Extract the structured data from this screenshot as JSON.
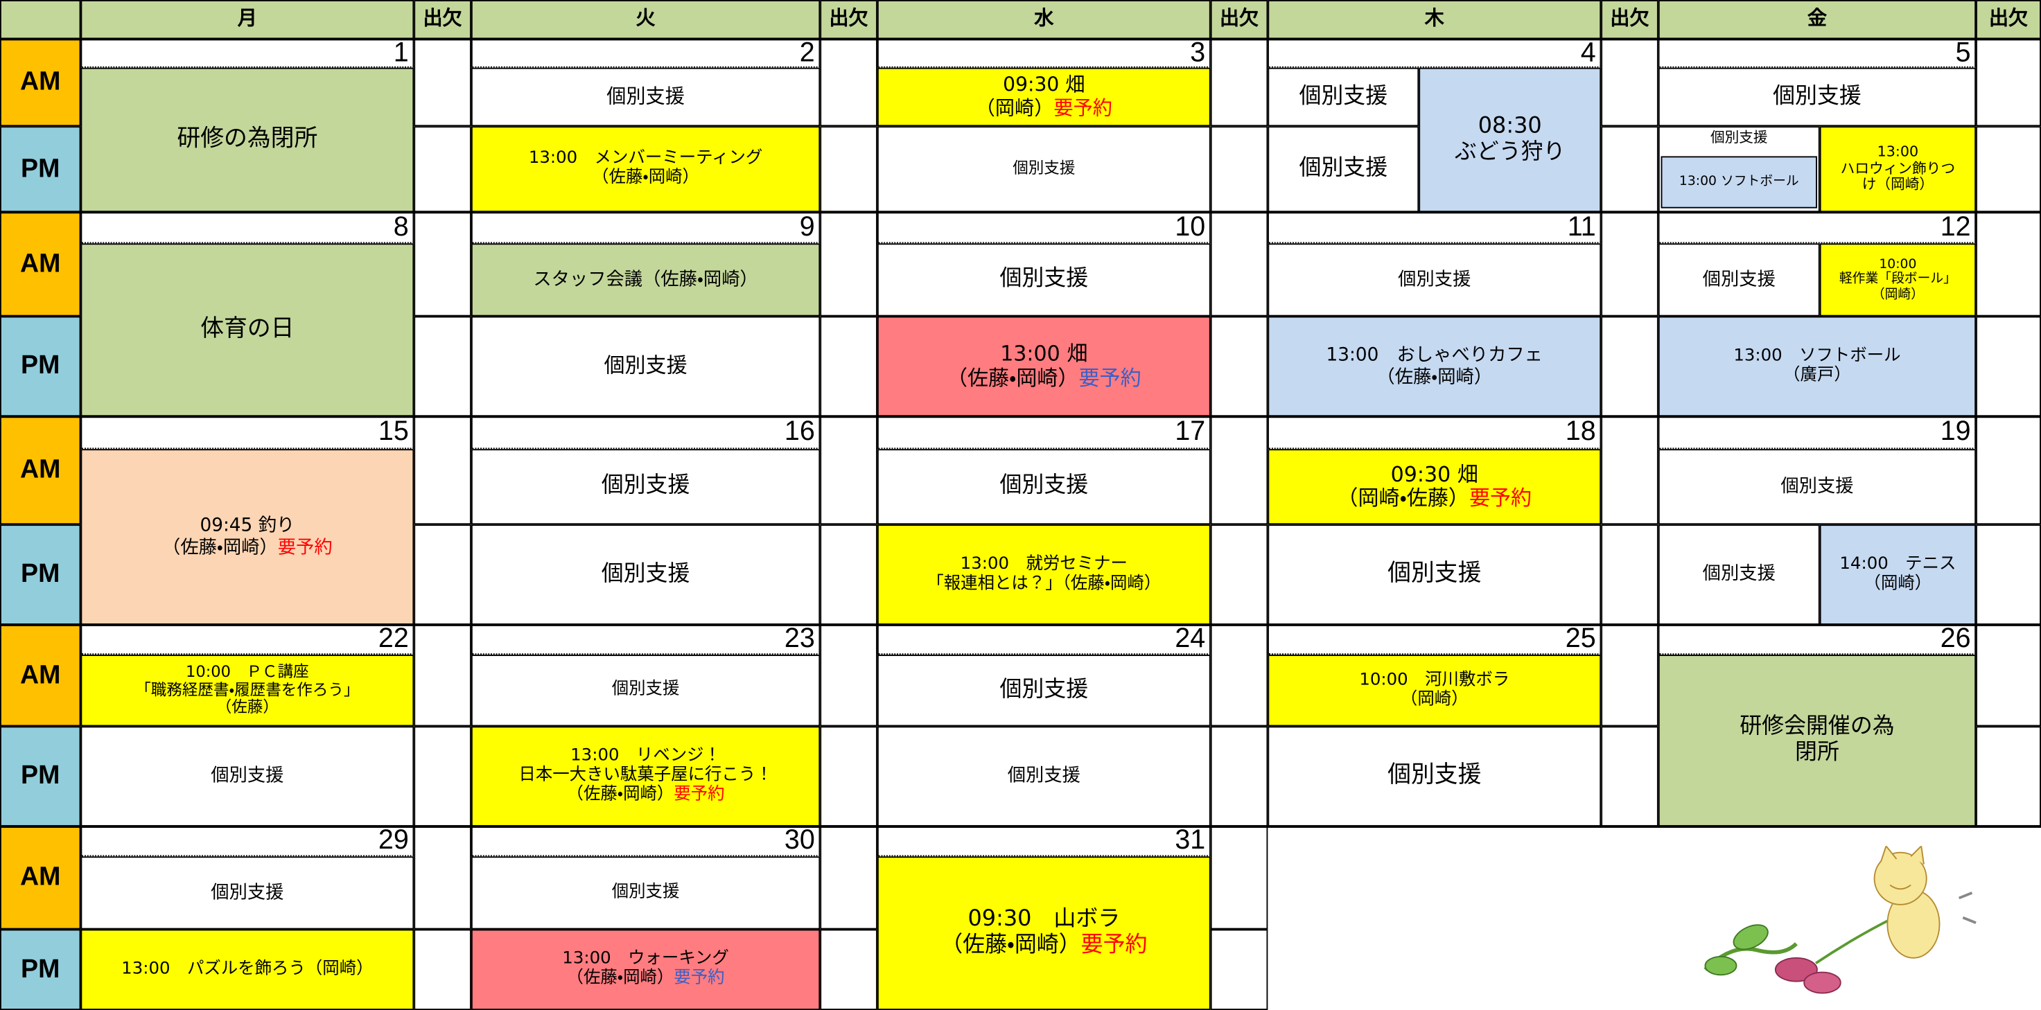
{
  "header": {
    "days": [
      "月",
      "火",
      "水",
      "木",
      "金"
    ],
    "attendance": "出欠"
  },
  "periods": [
    "AM",
    "PM"
  ],
  "weeks": [
    {
      "dates": [
        1,
        2,
        3,
        4,
        5
      ],
      "events": [
        {
          "lines": [
            "研修の為閉所"
          ]
        },
        {
          "lines": [
            "個別支援"
          ]
        },
        {
          "lines": [
            "13:00　メンバーミーティング",
            "（佐藤・岡崎）"
          ]
        },
        {
          "lines": [
            "09:30 畑",
            "（岡崎）"
          ],
          "note": "要予約"
        },
        {
          "lines": [
            "個別支援"
          ]
        },
        {
          "lines": [
            "個別支援"
          ]
        },
        {
          "lines": [
            "個別支援"
          ]
        },
        {
          "lines": [
            "08:30",
            "ぶどう狩り"
          ]
        },
        {
          "lines": [
            "個別支援"
          ]
        },
        {
          "lines": [
            "個別支援"
          ]
        },
        {
          "lines": [
            "13:00 ソフトボール"
          ]
        },
        {
          "lines": [
            "13:00",
            "ハロウィン飾りつ",
            "け（岡崎）"
          ]
        }
      ]
    },
    {
      "dates": [
        8,
        9,
        10,
        11,
        12
      ],
      "events": [
        {
          "lines": [
            "体育の日"
          ]
        },
        {
          "lines": [
            "スタッフ会議（佐藤・岡崎）"
          ]
        },
        {
          "lines": [
            "個別支援"
          ]
        },
        {
          "lines": [
            "個別支援"
          ]
        },
        {
          "lines": [
            "13:00 畑",
            "（佐藤・岡崎）"
          ],
          "note": "要予約"
        },
        {
          "lines": [
            "個別支援"
          ]
        },
        {
          "lines": [
            "13:00　おしゃべりカフェ",
            "（佐藤・岡崎）"
          ]
        },
        {
          "lines": [
            "個別支援"
          ]
        },
        {
          "lines": [
            "10:00",
            "軽作業「段ボール」",
            "（岡崎）"
          ]
        },
        {
          "lines": [
            "13:00　ソフトボール",
            "（廣戸）"
          ]
        }
      ]
    },
    {
      "dates": [
        15,
        16,
        17,
        18,
        19
      ],
      "events": [
        {
          "lines": [
            "09:45 釣り",
            "（佐藤・岡崎）"
          ],
          "note": "要予約"
        },
        {
          "lines": [
            "個別支援"
          ]
        },
        {
          "lines": [
            "個別支援"
          ]
        },
        {
          "lines": [
            "個別支援"
          ]
        },
        {
          "lines": [
            "13:00　就労セミナー",
            "「報連相とは？」（佐藤・岡崎）"
          ]
        },
        {
          "lines": [
            "09:30 畑",
            "（岡崎・佐藤）"
          ],
          "note": "要予約"
        },
        {
          "lines": [
            "個別支援"
          ]
        },
        {
          "lines": [
            "個別支援"
          ]
        },
        {
          "lines": [
            "個別支援"
          ]
        },
        {
          "lines": [
            "14:00　テニス",
            "（岡崎）"
          ]
        }
      ]
    },
    {
      "dates": [
        22,
        23,
        24,
        25,
        26
      ],
      "events": [
        {
          "lines": [
            "10:00　ＰＣ講座",
            "「職務経歴書・履歴書を作ろう」",
            "（佐藤）"
          ]
        },
        {
          "lines": [
            "個別支援"
          ]
        },
        {
          "lines": [
            "個別支援"
          ]
        },
        {
          "lines": [
            "13:00　リベンジ！",
            "日本一大きい駄菓子屋に行こう！",
            "（佐藤・岡崎）"
          ],
          "note": "要予約"
        },
        {
          "lines": [
            "個別支援"
          ]
        },
        {
          "lines": [
            "個別支援"
          ]
        },
        {
          "lines": [
            "10:00　河川敷ボラ",
            "（岡崎）"
          ]
        },
        {
          "lines": [
            "個別支援"
          ]
        },
        {
          "lines": [
            "研修会開催の為",
            "閉所"
          ]
        }
      ]
    },
    {
      "dates": [
        29,
        30,
        31
      ],
      "events": [
        {
          "lines": [
            "個別支援"
          ]
        },
        {
          "lines": [
            "13:00　パズルを飾ろう（岡崎）"
          ]
        },
        {
          "lines": [
            "個別支援"
          ]
        },
        {
          "lines": [
            "13:00　ウォーキング",
            "（佐藤・岡崎）"
          ],
          "note": "要予約"
        },
        {
          "lines": [
            "09:30　山ボラ",
            "（佐藤・岡崎）"
          ],
          "note": "要予約"
        }
      ]
    }
  ]
}
